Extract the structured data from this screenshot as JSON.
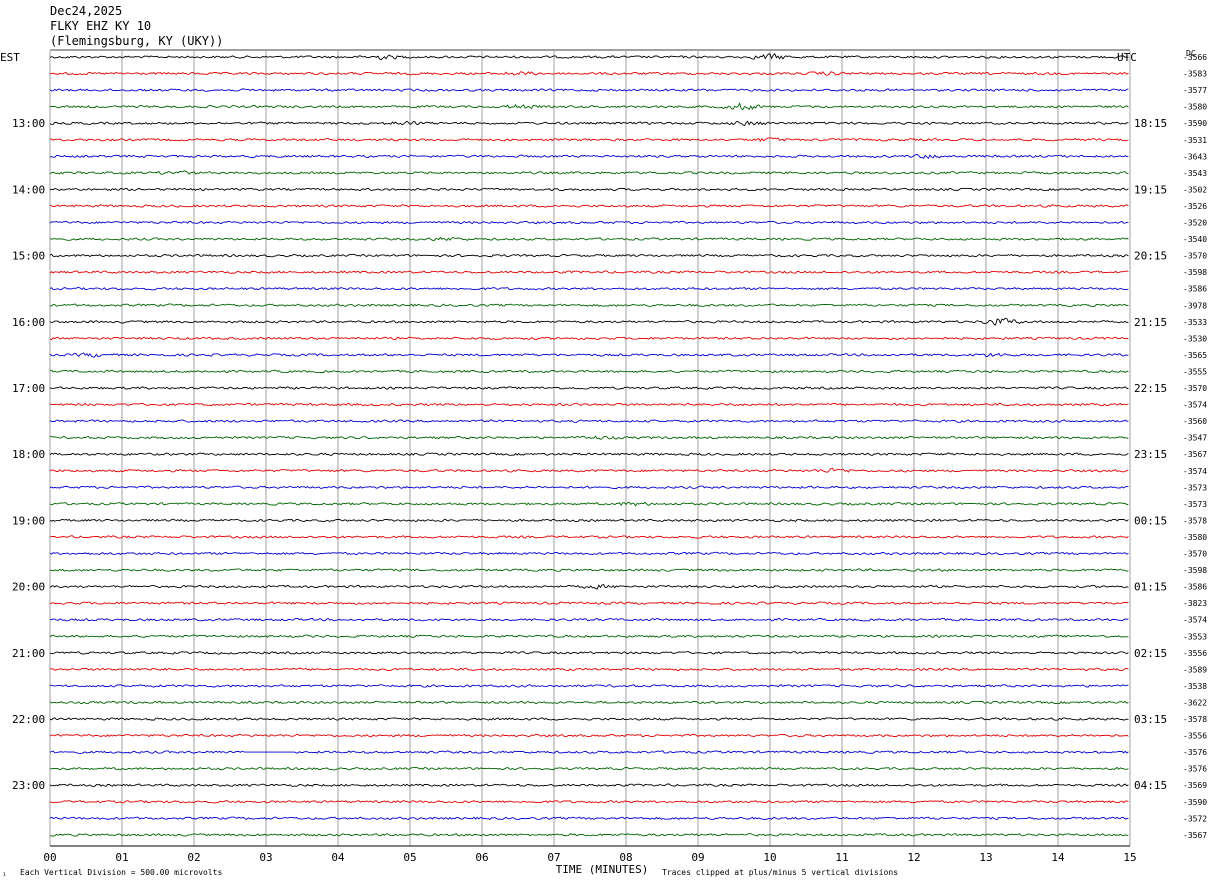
{
  "header": {
    "date": "Dec24,2025",
    "station": "FLKY EHZ KY 10",
    "location": "(Flemingsburg, KY (UKY))"
  },
  "left_axis_label": "EST",
  "right_axis_label": "UTC",
  "dc_label": "DC",
  "footer": {
    "scale_note": "Each Vertical Division =  500.00 microvolts",
    "clip_note": "Traces clipped at plus/minus 5 vertical divisions",
    "corner_mark": "¹"
  },
  "colors": {
    "black": "#000000",
    "red": "#e00000",
    "blue": "#0000d0",
    "green": "#006400",
    "grid": "#888888"
  },
  "chart_data": {
    "type": "line",
    "title": "FLKY EHZ KY 10",
    "xlabel": "TIME (MINUTES)",
    "ylabel": "",
    "xlim": [
      0,
      15
    ],
    "x_ticks": [
      "00",
      "01",
      "02",
      "03",
      "04",
      "05",
      "06",
      "07",
      "08",
      "09",
      "10",
      "11",
      "12",
      "13",
      "14",
      "15"
    ],
    "trace_colors_cycle": [
      "black",
      "red",
      "blue",
      "green"
    ],
    "left_hour_labels": [
      {
        "trace": 4,
        "label": "13:00"
      },
      {
        "trace": 8,
        "label": "14:00"
      },
      {
        "trace": 12,
        "label": "15:00"
      },
      {
        "trace": 16,
        "label": "16:00"
      },
      {
        "trace": 20,
        "label": "17:00"
      },
      {
        "trace": 24,
        "label": "18:00"
      },
      {
        "trace": 28,
        "label": "19:00"
      },
      {
        "trace": 32,
        "label": "20:00"
      },
      {
        "trace": 36,
        "label": "21:00"
      },
      {
        "trace": 40,
        "label": "22:00"
      },
      {
        "trace": 44,
        "label": "23:00"
      }
    ],
    "right_hour_labels": [
      {
        "trace": 4,
        "label": "18:15"
      },
      {
        "trace": 8,
        "label": "19:15"
      },
      {
        "trace": 12,
        "label": "20:15"
      },
      {
        "trace": 16,
        "label": "21:15"
      },
      {
        "trace": 20,
        "label": "22:15"
      },
      {
        "trace": 24,
        "label": "23:15"
      },
      {
        "trace": 28,
        "label": "00:15"
      },
      {
        "trace": 32,
        "label": "01:15"
      },
      {
        "trace": 36,
        "label": "02:15"
      },
      {
        "trace": 40,
        "label": "03:15"
      },
      {
        "trace": 44,
        "label": "04:15"
      }
    ],
    "dc_offsets": [
      "-3566",
      "-3583",
      "-3577",
      "-3580",
      "-3590",
      "-3531",
      "-3643",
      "-3543",
      "-3502",
      "-3526",
      "-3520",
      "-3540",
      "-3570",
      "-3598",
      "-3586",
      "-3978",
      "-3533",
      "-3530",
      "-3565",
      "-3555",
      "-3570",
      "-3574",
      "-3560",
      "-3547",
      "-3567",
      "-3574",
      "-3573",
      "-3573",
      "-3578",
      "-3580",
      "-3570",
      "-3598",
      "-3586",
      "-3823",
      "-3574",
      "-3553",
      "-3556",
      "-3589",
      "-3538",
      "-3622",
      "-3578",
      "-3556",
      "-3576",
      "-3576",
      "-3569",
      "-3590",
      "-3572",
      "-3567"
    ],
    "events": [
      {
        "trace": 0,
        "minute": 4.6,
        "amplitude": 2.5
      },
      {
        "trace": 0,
        "minute": 10.0,
        "amplitude": 3.5
      },
      {
        "trace": 1,
        "minute": 6.5,
        "amplitude": 1.8
      },
      {
        "trace": 1,
        "minute": 10.8,
        "amplitude": 1.6
      },
      {
        "trace": 3,
        "minute": 6.5,
        "amplitude": 2.0
      },
      {
        "trace": 3,
        "minute": 9.6,
        "amplitude": 4.0
      },
      {
        "trace": 4,
        "minute": 4.9,
        "amplitude": 2.2
      },
      {
        "trace": 4,
        "minute": 9.7,
        "amplitude": 2.2
      },
      {
        "trace": 5,
        "minute": 10.0,
        "amplitude": 1.8
      },
      {
        "trace": 6,
        "minute": 12.2,
        "amplitude": 2.0
      },
      {
        "trace": 7,
        "minute": 1.8,
        "amplitude": 1.8
      },
      {
        "trace": 11,
        "minute": 5.5,
        "amplitude": 1.6
      },
      {
        "trace": 16,
        "minute": 13.2,
        "amplitude": 4.5
      },
      {
        "trace": 18,
        "minute": 0.6,
        "amplitude": 1.8
      },
      {
        "trace": 18,
        "minute": 13.1,
        "amplitude": 1.8
      },
      {
        "trace": 23,
        "minute": 7.6,
        "amplitude": 1.6
      },
      {
        "trace": 25,
        "minute": 10.9,
        "amplitude": 2.2
      },
      {
        "trace": 27,
        "minute": 8.1,
        "amplitude": 1.8
      },
      {
        "trace": 32,
        "minute": 7.6,
        "amplitude": 1.8
      }
    ],
    "flat_segments": [
      {
        "trace": 42,
        "start_minute": 2.7,
        "end_minute": 3.4
      }
    ]
  }
}
